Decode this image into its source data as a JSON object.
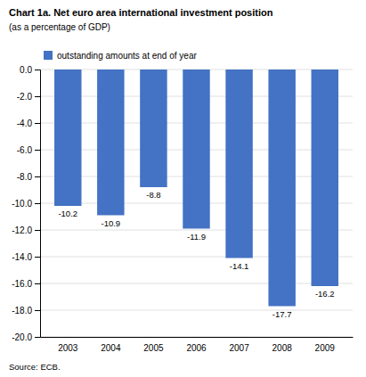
{
  "chart_data": {
    "type": "bar",
    "title": "Chart 1a. Net euro area international investment position",
    "subtitle": "(as a percentage of GDP)",
    "annotations": [
      "Source: ECB."
    ],
    "categories": [
      "2003",
      "2004",
      "2005",
      "2006",
      "2007",
      "2008",
      "2009"
    ],
    "series": [
      {
        "name": "outstanding amounts at end of year",
        "color": "#4472C4",
        "values": [
          -10.2,
          -10.9,
          -8.8,
          -11.9,
          -14.1,
          -17.7,
          -16.2
        ]
      }
    ],
    "ylim": [
      -20.0,
      0.0
    ],
    "yticks": [
      {
        "value": 0.0,
        "label": "0.0"
      },
      {
        "value": -2.0,
        "label": "-2.0"
      },
      {
        "value": -4.0,
        "label": "-4.0"
      },
      {
        "value": -6.0,
        "label": "-6.0"
      },
      {
        "value": -8.0,
        "label": "-8.0"
      },
      {
        "value": -10.0,
        "label": "-10.0"
      },
      {
        "value": -12.0,
        "label": "-12.0"
      },
      {
        "value": -14.0,
        "label": "-14.0"
      },
      {
        "value": -16.0,
        "label": "-16.0"
      },
      {
        "value": -18.0,
        "label": "-18.0"
      },
      {
        "value": -20.0,
        "label": "-20.0"
      }
    ],
    "grid": true,
    "legend": "upper-left",
    "data_labels": true
  }
}
